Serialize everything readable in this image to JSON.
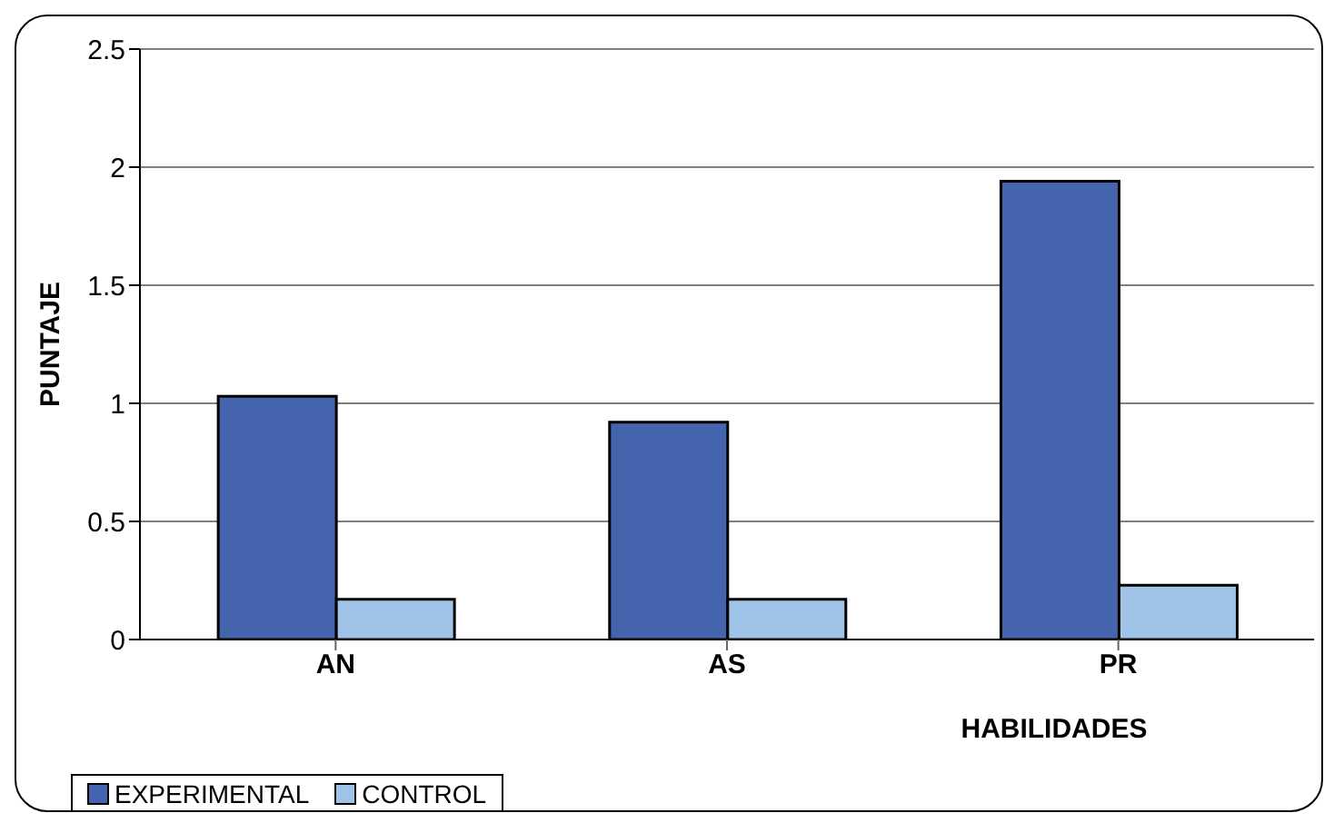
{
  "chart_data": {
    "type": "bar",
    "xlabel": "HABILIDADES",
    "ylabel": "PUNTAJE",
    "categories": [
      "AN",
      "AS",
      "PR"
    ],
    "series": [
      {
        "name": "EXPERIMENTAL",
        "color": "#4464ad",
        "values": [
          1.03,
          0.92,
          1.94
        ]
      },
      {
        "name": "CONTROL",
        "color": "#a0c4e8",
        "values": [
          0.17,
          0.17,
          0.23
        ]
      }
    ],
    "ylim": [
      0,
      2.5
    ],
    "yticks": [
      0,
      0.5,
      1,
      1.5,
      2,
      2.5
    ],
    "grid": "y",
    "legend": "bottom left"
  }
}
